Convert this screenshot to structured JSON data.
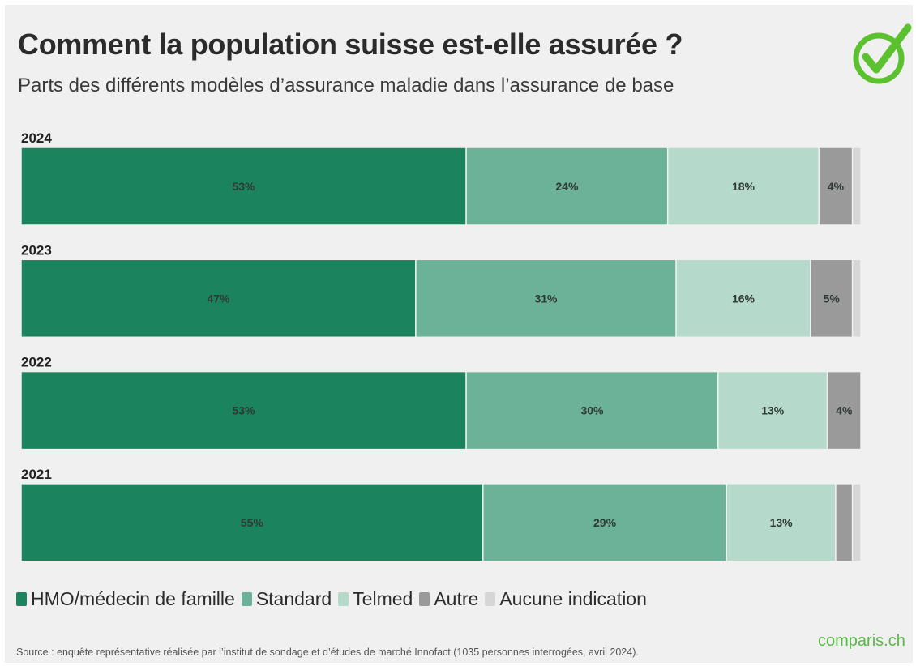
{
  "header": {
    "title": "Comment la population suisse est-elle assurée ?",
    "subtitle": "Parts des différents modèles d’assurance maladie dans l’assurance de base"
  },
  "logo": {
    "icon": "checkmark-circle-icon",
    "color": "#5cc12f"
  },
  "colors": {
    "HMO/médecin de famille": "#1b845e",
    "Standard": "#6cb298",
    "Telmed": "#b5d9ca",
    "Autre": "#9a9a9a",
    "Aucune indication": "#d6d6d6"
  },
  "legend": {
    "items": [
      {
        "label": "HMO/médecin de famille",
        "color": "#1b845e"
      },
      {
        "label": "Standard",
        "color": "#6cb298"
      },
      {
        "label": "Telmed",
        "color": "#b5d9ca"
      },
      {
        "label": "Autre",
        "color": "#9a9a9a"
      },
      {
        "label": "Aucune indication",
        "color": "#d6d6d6"
      }
    ]
  },
  "footer": {
    "source": "Source : enquête représentative réalisée par l’institut de sondage et d’études de marché Innofact (1035 personnes interrogées, avril 2024).",
    "brand": "comparis.ch"
  },
  "chart_data": {
    "type": "bar",
    "orientation": "horizontal",
    "stacked": true,
    "categories": [
      "2024",
      "2023",
      "2022",
      "2021"
    ],
    "series": [
      {
        "name": "HMO/médecin de famille",
        "values": [
          53,
          47,
          53,
          55
        ],
        "labels": [
          "53%",
          "47%",
          "53%",
          "55%"
        ]
      },
      {
        "name": "Standard",
        "values": [
          24,
          31,
          30,
          29
        ],
        "labels": [
          "24%",
          "31%",
          "30%",
          "29%"
        ]
      },
      {
        "name": "Telmed",
        "values": [
          18,
          16,
          13,
          13
        ],
        "labels": [
          "18%",
          "16%",
          "13%",
          "13%"
        ]
      },
      {
        "name": "Autre",
        "values": [
          4,
          5,
          4,
          2
        ],
        "labels": [
          "4%",
          "5%",
          "4%",
          ""
        ]
      },
      {
        "name": "Aucune indication",
        "values": [
          1,
          1,
          0,
          1
        ],
        "labels": [
          "",
          "",
          "",
          ""
        ]
      }
    ],
    "xlim": [
      0,
      100
    ],
    "grid": false,
    "legend_position": "bottom"
  }
}
